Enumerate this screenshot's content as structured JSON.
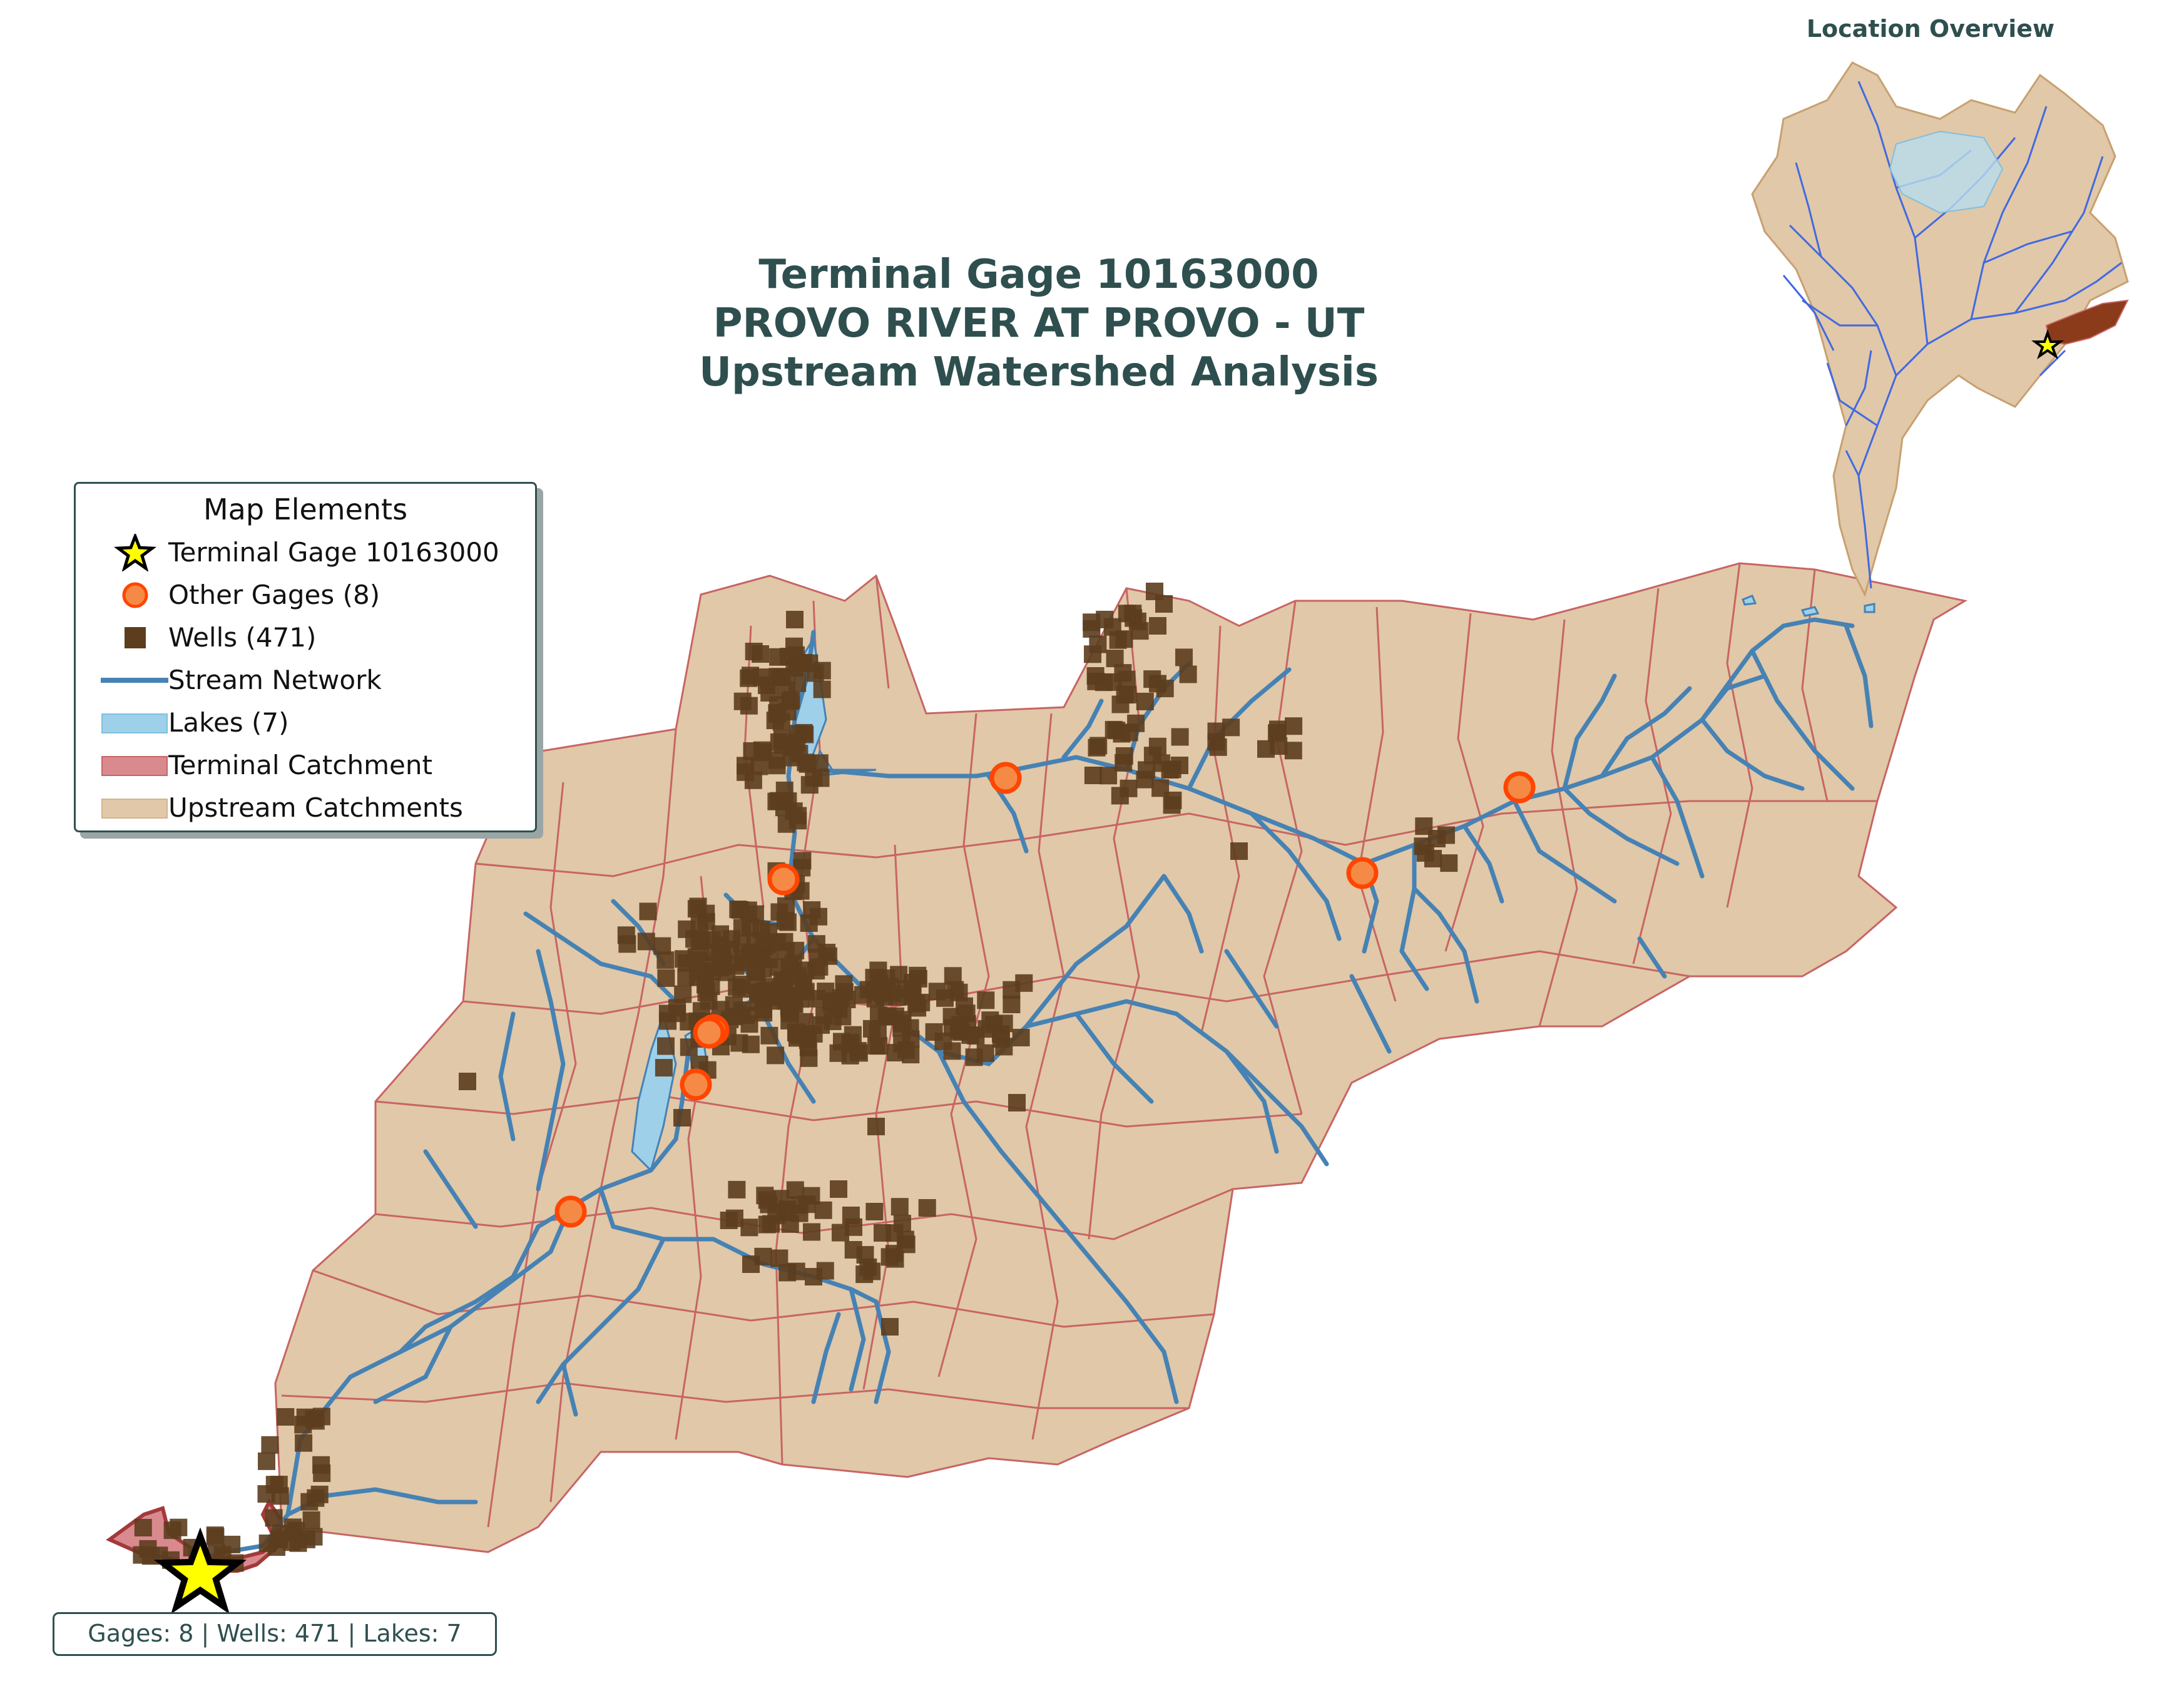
{
  "title": {
    "line1": "Terminal Gage 10163000",
    "line2": "PROVO RIVER AT PROVO - UT",
    "line3": "Upstream Watershed Analysis"
  },
  "legend": {
    "title": "Map Elements",
    "items": [
      {
        "label": "Terminal Gage 10163000",
        "symbol": "star-icon"
      },
      {
        "label": "Other Gages (8)",
        "symbol": "circle-icon"
      },
      {
        "label": "Wells (471)",
        "symbol": "square-icon"
      },
      {
        "label": "Stream Network",
        "symbol": "line-icon"
      },
      {
        "label": "Lakes (7)",
        "symbol": "lake-patch-icon"
      },
      {
        "label": "Terminal Catchment",
        "symbol": "terminal-patch-icon"
      },
      {
        "label": "Upstream Catchments",
        "symbol": "upstream-patch-icon"
      }
    ]
  },
  "stats": "Gages: 8 | Wells: 471 | Lakes: 7",
  "inset": {
    "title": "Location Overview"
  },
  "colors": {
    "catchment_fill": "#e0c8a8",
    "catchment_edge": "#c86464",
    "stream": "#4682b4",
    "lake_fill": "#9ed0ea",
    "terminal_fill": "#d98a8f",
    "gage_fill": "#f48a46",
    "gage_edge": "#ff4500",
    "well": "#5c3d1e",
    "star_fill": "#ffff00",
    "title_text": "#2f4f4f",
    "inset_stream": "#4169e1"
  }
}
